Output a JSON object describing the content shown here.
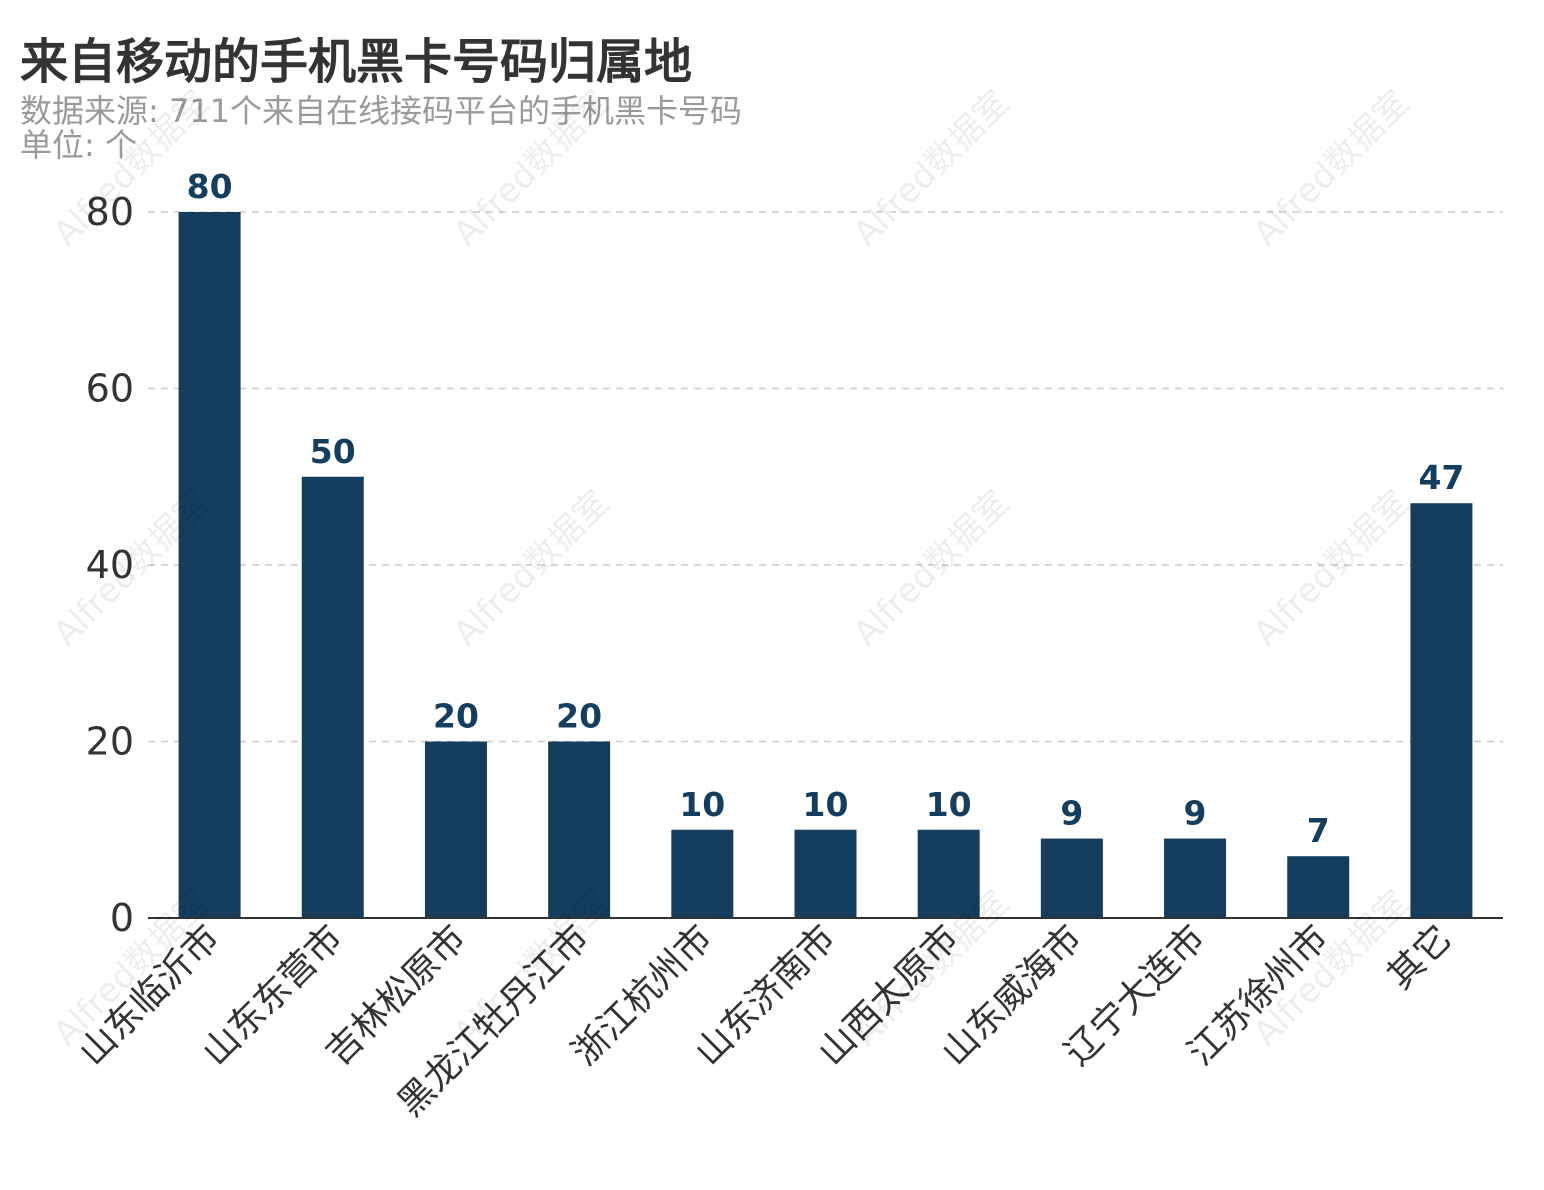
{
  "title": "来自移动的手机黑卡号码归属地",
  "subtitle": "数据来源: 711个来自在线接码平台的手机黑卡号码",
  "unit": "单位: 个",
  "watermark": "Alfred数据室",
  "colors": {
    "bar": "#143d5e",
    "label": "#143d5e",
    "grid": "#cccccc",
    "axis": "#333333",
    "tick_text": "#333333"
  },
  "chart_data": {
    "type": "bar",
    "title": "来自移动的手机黑卡号码归属地",
    "ylim": [
      0,
      80
    ],
    "yticks": [
      0,
      20,
      40,
      60,
      80
    ],
    "grid": true,
    "categories": [
      "山东临沂市",
      "山东东营市",
      "吉林松原市",
      "黑龙江牡丹江市",
      "浙江杭州市",
      "山东济南市",
      "山西太原市",
      "山东威海市",
      "辽宁大连市",
      "江苏徐州市",
      "其它"
    ],
    "values": [
      80,
      50,
      20,
      20,
      10,
      10,
      10,
      9,
      9,
      7,
      47
    ]
  }
}
